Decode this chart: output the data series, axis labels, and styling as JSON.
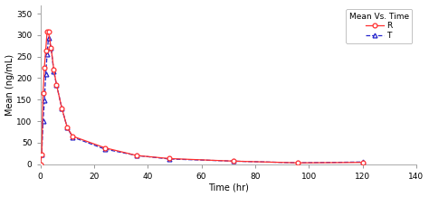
{
  "title": "Mean Vs. Time",
  "xlabel": "Time (hr)",
  "ylabel": "Mean (ng/mL)",
  "xlim": [
    0,
    140
  ],
  "ylim": [
    0,
    370
  ],
  "xticks": [
    0,
    20,
    40,
    60,
    80,
    100,
    120,
    140
  ],
  "yticks": [
    0,
    50,
    100,
    150,
    200,
    250,
    300,
    350
  ],
  "R_time": [
    0,
    0.5,
    1,
    1.5,
    2,
    2.5,
    3,
    4,
    5,
    6,
    8,
    10,
    12,
    24,
    36,
    48,
    72,
    96,
    120
  ],
  "R_conc": [
    0,
    22,
    165,
    225,
    265,
    308,
    308,
    270,
    220,
    185,
    130,
    85,
    65,
    38,
    20,
    13,
    7,
    3,
    4
  ],
  "T_time": [
    0,
    0.5,
    1,
    1.5,
    2,
    2.5,
    3,
    4,
    5,
    6,
    8,
    10,
    12,
    24,
    36,
    48,
    72,
    96,
    120
  ],
  "T_conc": [
    0,
    22,
    100,
    148,
    210,
    255,
    293,
    270,
    215,
    185,
    130,
    85,
    63,
    35,
    20,
    12,
    7,
    3,
    5
  ],
  "R_color": "#ff3030",
  "T_color": "#2222cc",
  "background_color": "#ffffff",
  "legend_title": "Mean Vs. Time",
  "legend_R": "R",
  "legend_T": "T"
}
